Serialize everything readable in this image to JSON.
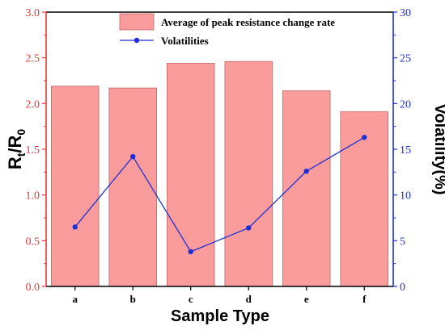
{
  "chart_data": {
    "type": "bar",
    "categories": [
      "a",
      "b",
      "c",
      "d",
      "e",
      "f"
    ],
    "series": [
      {
        "name": "Average of peak resistance change rate",
        "type": "bar",
        "axis": "left",
        "values": [
          2.19,
          2.17,
          2.44,
          2.46,
          2.14,
          1.91
        ],
        "color": "#fa9c9c"
      },
      {
        "name": "Volatilities",
        "type": "line",
        "axis": "right",
        "values": [
          6.5,
          14.2,
          3.8,
          6.4,
          12.6,
          16.3
        ],
        "color": "#1f2fd8"
      }
    ],
    "xlabel": "Sample Type",
    "ylabel": {
      "main": "R",
      "sub1": "t",
      "slash": "/R",
      "sub2": "0"
    },
    "y2label": "Volatility(%)",
    "ylim": [
      0,
      3.0
    ],
    "y2lim": [
      0,
      30
    ],
    "yticks": [
      "0.0",
      "0.5",
      "1.0",
      "1.5",
      "2.0",
      "2.5",
      "3.0"
    ],
    "y2ticks": [
      "0",
      "5",
      "10",
      "15",
      "20",
      "25",
      "30"
    ],
    "legend_position": "top-center",
    "grid": false,
    "colors": {
      "left_axis": "#e8383d",
      "right_axis": "#1f2fd8",
      "frame": "#000000"
    }
  }
}
